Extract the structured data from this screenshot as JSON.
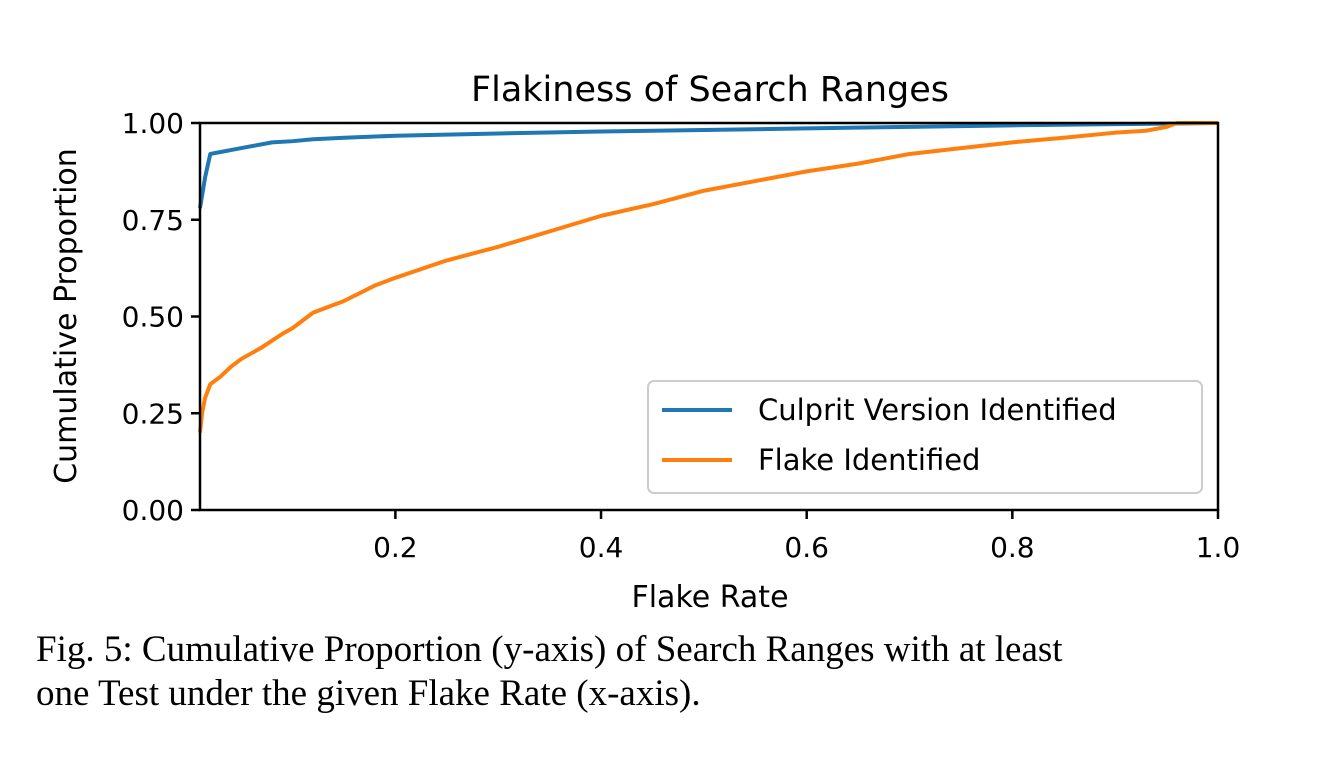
{
  "chart_data": {
    "type": "line",
    "title": "Flakiness of Search Ranges",
    "xlabel": "Flake Rate",
    "ylabel": "Cumulative Proportion",
    "xlim": [
      0.01,
      1.0
    ],
    "ylim": [
      0.0,
      1.0
    ],
    "x_ticks": [
      0.2,
      0.4,
      0.6,
      0.8,
      1.0
    ],
    "x_tick_labels": [
      "0.2",
      "0.4",
      "0.6",
      "0.8",
      "1.0"
    ],
    "y_ticks": [
      0.0,
      0.25,
      0.5,
      0.75,
      1.0
    ],
    "y_tick_labels": [
      "0.00",
      "0.25",
      "0.50",
      "0.75",
      "1.00"
    ],
    "grid": false,
    "legend_position": "lower-right",
    "series": [
      {
        "name": "Culprit Version Identified",
        "color": "#1f77b4",
        "points": [
          [
            0.01,
            0.78
          ],
          [
            0.015,
            0.86
          ],
          [
            0.02,
            0.92
          ],
          [
            0.03,
            0.925
          ],
          [
            0.04,
            0.93
          ],
          [
            0.06,
            0.94
          ],
          [
            0.08,
            0.95
          ],
          [
            0.1,
            0.953
          ],
          [
            0.12,
            0.958
          ],
          [
            0.15,
            0.962
          ],
          [
            0.2,
            0.967
          ],
          [
            0.3,
            0.973
          ],
          [
            0.4,
            0.978
          ],
          [
            0.5,
            0.982
          ],
          [
            0.6,
            0.986
          ],
          [
            0.7,
            0.99
          ],
          [
            0.8,
            0.994
          ],
          [
            0.9,
            0.997
          ],
          [
            1.0,
            1.0
          ]
        ]
      },
      {
        "name": "Flake Identified",
        "color": "#ff7f0e",
        "points": [
          [
            0.01,
            0.2
          ],
          [
            0.012,
            0.25
          ],
          [
            0.015,
            0.29
          ],
          [
            0.02,
            0.325
          ],
          [
            0.03,
            0.345
          ],
          [
            0.04,
            0.37
          ],
          [
            0.05,
            0.39
          ],
          [
            0.07,
            0.42
          ],
          [
            0.09,
            0.455
          ],
          [
            0.1,
            0.47
          ],
          [
            0.12,
            0.51
          ],
          [
            0.15,
            0.54
          ],
          [
            0.18,
            0.58
          ],
          [
            0.2,
            0.6
          ],
          [
            0.25,
            0.645
          ],
          [
            0.3,
            0.68
          ],
          [
            0.35,
            0.72
          ],
          [
            0.4,
            0.76
          ],
          [
            0.45,
            0.79
          ],
          [
            0.5,
            0.825
          ],
          [
            0.55,
            0.85
          ],
          [
            0.6,
            0.875
          ],
          [
            0.65,
            0.895
          ],
          [
            0.7,
            0.92
          ],
          [
            0.75,
            0.935
          ],
          [
            0.8,
            0.95
          ],
          [
            0.85,
            0.962
          ],
          [
            0.9,
            0.975
          ],
          [
            0.93,
            0.98
          ],
          [
            0.95,
            0.99
          ],
          [
            0.96,
            1.0
          ],
          [
            1.0,
            1.0
          ]
        ]
      }
    ]
  },
  "caption": {
    "line1": "Fig. 5: Cumulative Proportion (y-axis) of Search Ranges with at least",
    "line2": "one Test under the given Flake Rate (x-axis)."
  }
}
